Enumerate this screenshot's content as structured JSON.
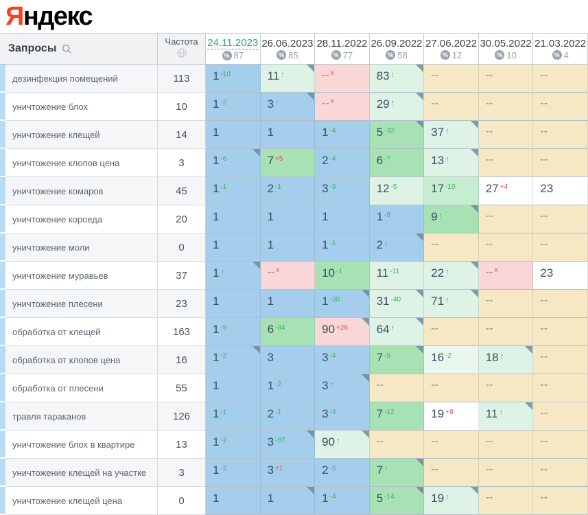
{
  "logo": {
    "text_red": "Я",
    "text_black": "ндекс"
  },
  "header": {
    "queries_label": "Запросы",
    "frequency_label": "Частота"
  },
  "columns": [
    {
      "date": "24.11.2023",
      "share": "87",
      "active": true
    },
    {
      "date": "26.06.2023",
      "share": "85",
      "active": false
    },
    {
      "date": "28.11.2022",
      "share": "77",
      "active": false
    },
    {
      "date": "26.09.2022",
      "share": "58",
      "active": false
    },
    {
      "date": "27.06.2022",
      "share": "12",
      "active": false
    },
    {
      "date": "30.05.2022",
      "share": "10",
      "active": false
    },
    {
      "date": "21.03.2022",
      "share": "4",
      "active": false
    }
  ],
  "rows": [
    {
      "query": "дезинфекция помещений",
      "frequency": "113",
      "cells": [
        {
          "v": "1",
          "sup": "-10",
          "sc": "up",
          "bg": "blue"
        },
        {
          "v": "11",
          "arrow": true,
          "bg": "mint",
          "mk": true
        },
        {
          "v": "--",
          "sup": "x",
          "sc": "down",
          "bg": "pink"
        },
        {
          "v": "83",
          "arrow": true,
          "bg": "mint",
          "mk": true
        },
        {
          "v": "--",
          "bg": "beige"
        },
        {
          "v": "--",
          "bg": "beige"
        },
        {
          "v": "--",
          "bg": "beige"
        }
      ]
    },
    {
      "query": "уничтожение блох",
      "frequency": "10",
      "cells": [
        {
          "v": "1",
          "sup": "-2",
          "sc": "up",
          "bg": "blue"
        },
        {
          "v": "3",
          "arrow": true,
          "bg": "blue",
          "mk": true
        },
        {
          "v": "--",
          "sup": "x",
          "sc": "down",
          "bg": "pink"
        },
        {
          "v": "29",
          "arrow": true,
          "bg": "mint",
          "mk": true
        },
        {
          "v": "--",
          "bg": "beige"
        },
        {
          "v": "--",
          "bg": "beige"
        },
        {
          "v": "--",
          "bg": "beige"
        }
      ]
    },
    {
      "query": "уничтожение клещей",
      "frequency": "14",
      "cells": [
        {
          "v": "1",
          "bg": "blue"
        },
        {
          "v": "1",
          "bg": "blue"
        },
        {
          "v": "1",
          "sup": "-4",
          "sc": "up",
          "bg": "blue"
        },
        {
          "v": "5",
          "sup": "-32",
          "sc": "up",
          "bg": "green",
          "mk": true
        },
        {
          "v": "37",
          "arrow": true,
          "bg": "mint",
          "mk": true
        },
        {
          "v": "--",
          "bg": "beige"
        },
        {
          "v": "--",
          "bg": "beige"
        }
      ]
    },
    {
      "query": "уничтожение клопов цена",
      "frequency": "3",
      "cells": [
        {
          "v": "1",
          "sup": "-6",
          "sc": "up",
          "bg": "blue",
          "mk": true
        },
        {
          "v": "7",
          "sup": "+5",
          "sc": "down",
          "bg": "green"
        },
        {
          "v": "2",
          "sup": "-4",
          "sc": "up",
          "bg": "blue"
        },
        {
          "v": "6",
          "sup": "-7",
          "sc": "up",
          "bg": "green"
        },
        {
          "v": "13",
          "arrow": true,
          "bg": "mint",
          "mk": true
        },
        {
          "v": "--",
          "bg": "beige"
        },
        {
          "v": "--",
          "bg": "beige"
        }
      ]
    },
    {
      "query": "уничтожение комаров",
      "frequency": "45",
      "cells": [
        {
          "v": "1",
          "sup": "-1",
          "sc": "up",
          "bg": "blue"
        },
        {
          "v": "2",
          "sup": "-1",
          "sc": "up",
          "bg": "blue"
        },
        {
          "v": "3",
          "sup": "-9",
          "sc": "up",
          "bg": "blue"
        },
        {
          "v": "12",
          "sup": "-5",
          "sc": "up",
          "bg": "mint"
        },
        {
          "v": "17",
          "sup": "-10",
          "sc": "up",
          "bg": "green2"
        },
        {
          "v": "27",
          "sup": "+4",
          "sc": "down",
          "bg": "white"
        },
        {
          "v": "23",
          "bg": "white"
        }
      ]
    },
    {
      "query": "уничтожение короеда",
      "frequency": "20",
      "cells": [
        {
          "v": "1",
          "bg": "blue"
        },
        {
          "v": "1",
          "bg": "blue"
        },
        {
          "v": "1",
          "bg": "blue"
        },
        {
          "v": "1",
          "sup": "-8",
          "sc": "up",
          "bg": "blue"
        },
        {
          "v": "9",
          "arrow": true,
          "bg": "green",
          "mk": true
        },
        {
          "v": "--",
          "bg": "beige"
        },
        {
          "v": "--",
          "bg": "beige"
        }
      ]
    },
    {
      "query": "уничтожение моли",
      "frequency": "0",
      "cells": [
        {
          "v": "1",
          "bg": "blue"
        },
        {
          "v": "1",
          "bg": "blue"
        },
        {
          "v": "1",
          "sup": "-1",
          "sc": "up",
          "bg": "blue"
        },
        {
          "v": "2",
          "arrow": true,
          "bg": "blue",
          "mk": true
        },
        {
          "v": "--",
          "bg": "beige"
        },
        {
          "v": "--",
          "bg": "beige"
        },
        {
          "v": "--",
          "bg": "beige"
        }
      ]
    },
    {
      "query": "уничтожение муравьев",
      "frequency": "37",
      "cells": [
        {
          "v": "1",
          "arrow": true,
          "bg": "blue",
          "mk": true
        },
        {
          "v": "--",
          "sup": "x",
          "sc": "down",
          "bg": "pink"
        },
        {
          "v": "10",
          "sup": "-1",
          "sc": "up",
          "bg": "green"
        },
        {
          "v": "11",
          "sup": "-11",
          "sc": "up",
          "bg": "mint"
        },
        {
          "v": "22",
          "arrow": true,
          "bg": "mint",
          "mk": true
        },
        {
          "v": "--",
          "sup": "x",
          "sc": "down",
          "bg": "pink"
        },
        {
          "v": "23",
          "bg": "white"
        }
      ]
    },
    {
      "query": "уничтожение плесени",
      "frequency": "23",
      "cells": [
        {
          "v": "1",
          "bg": "blue"
        },
        {
          "v": "1",
          "bg": "blue"
        },
        {
          "v": "1",
          "sup": "-30",
          "sc": "up",
          "bg": "blue",
          "mk": true
        },
        {
          "v": "31",
          "sup": "-40",
          "sc": "up",
          "bg": "mint",
          "mk": true
        },
        {
          "v": "71",
          "arrow": true,
          "bg": "mint",
          "mk": true
        },
        {
          "v": "--",
          "bg": "beige"
        },
        {
          "v": "--",
          "bg": "beige"
        }
      ]
    },
    {
      "query": "обработка от клещей",
      "frequency": "163",
      "cells": [
        {
          "v": "1",
          "sup": "-5",
          "sc": "up",
          "bg": "blue"
        },
        {
          "v": "6",
          "sup": "-84",
          "sc": "up",
          "bg": "green"
        },
        {
          "v": "90",
          "sup": "+26",
          "sc": "down",
          "bg": "pink",
          "mk": true
        },
        {
          "v": "64",
          "arrow": true,
          "bg": "mint",
          "mk": true
        },
        {
          "v": "--",
          "bg": "beige"
        },
        {
          "v": "--",
          "bg": "beige"
        },
        {
          "v": "--",
          "bg": "beige"
        }
      ]
    },
    {
      "query": "обработка от клопов цена",
      "frequency": "16",
      "cells": [
        {
          "v": "1",
          "sup": "-2",
          "sc": "up",
          "bg": "blue",
          "mk": true
        },
        {
          "v": "3",
          "bg": "blue"
        },
        {
          "v": "3",
          "sup": "-4",
          "sc": "up",
          "bg": "blue"
        },
        {
          "v": "7",
          "sup": "-9",
          "sc": "up",
          "bg": "green",
          "mk": true
        },
        {
          "v": "16",
          "sup": "-2",
          "sc": "up",
          "bg": "green3"
        },
        {
          "v": "18",
          "arrow": true,
          "bg": "mint",
          "mk": true
        },
        {
          "v": "--",
          "bg": "beige"
        }
      ]
    },
    {
      "query": "обработка от плесени",
      "frequency": "55",
      "cells": [
        {
          "v": "1",
          "bg": "blue"
        },
        {
          "v": "1",
          "sup": "-2",
          "sc": "up",
          "bg": "blue"
        },
        {
          "v": "3",
          "arrow": true,
          "bg": "blue",
          "mk": true
        },
        {
          "v": "--",
          "bg": "beige"
        },
        {
          "v": "--",
          "bg": "beige"
        },
        {
          "v": "--",
          "bg": "beige"
        },
        {
          "v": "--",
          "bg": "beige"
        }
      ]
    },
    {
      "query": "травля тараканов",
      "frequency": "126",
      "cells": [
        {
          "v": "1",
          "sup": "-1",
          "sc": "up",
          "bg": "blue"
        },
        {
          "v": "2",
          "sup": "-1",
          "sc": "up",
          "bg": "blue"
        },
        {
          "v": "3",
          "sup": "-4",
          "sc": "up",
          "bg": "blue"
        },
        {
          "v": "7",
          "sup": "-12",
          "sc": "up",
          "bg": "green"
        },
        {
          "v": "19",
          "sup": "+8",
          "sc": "down",
          "bg": "white"
        },
        {
          "v": "11",
          "arrow": true,
          "bg": "mint",
          "mk": true
        },
        {
          "v": "--",
          "bg": "beige"
        }
      ]
    },
    {
      "query": "уничтожение блох в квартире",
      "frequency": "13",
      "cells": [
        {
          "v": "1",
          "sup": "-2",
          "sc": "up",
          "bg": "blue"
        },
        {
          "v": "3",
          "sup": "-87",
          "sc": "up",
          "bg": "blue",
          "mk": true
        },
        {
          "v": "90",
          "arrow": true,
          "bg": "mint",
          "mk": true
        },
        {
          "v": "--",
          "bg": "beige"
        },
        {
          "v": "--",
          "bg": "beige"
        },
        {
          "v": "--",
          "bg": "beige"
        },
        {
          "v": "--",
          "bg": "beige"
        }
      ]
    },
    {
      "query": "уничтожение клещей на участке",
      "frequency": "3",
      "cells": [
        {
          "v": "1",
          "sup": "-2",
          "sc": "up",
          "bg": "blue"
        },
        {
          "v": "3",
          "sup": "+1",
          "sc": "down",
          "bg": "blue"
        },
        {
          "v": "2",
          "sup": "-5",
          "sc": "up",
          "bg": "blue"
        },
        {
          "v": "7",
          "arrow": true,
          "bg": "green",
          "mk": true
        },
        {
          "v": "--",
          "bg": "beige"
        },
        {
          "v": "--",
          "bg": "beige"
        },
        {
          "v": "--",
          "bg": "beige"
        }
      ]
    },
    {
      "query": "уничтожение клещей цена",
      "frequency": "0",
      "cells": [
        {
          "v": "1",
          "bg": "blue"
        },
        {
          "v": "1",
          "bg": "blue",
          "mk": true
        },
        {
          "v": "1",
          "sup": "-4",
          "sc": "up",
          "bg": "blue"
        },
        {
          "v": "5",
          "sup": "-14",
          "sc": "up",
          "bg": "green",
          "mk": true
        },
        {
          "v": "19",
          "arrow": true,
          "bg": "mint",
          "mk": true
        },
        {
          "v": "--",
          "bg": "beige"
        },
        {
          "v": "--",
          "bg": "beige"
        }
      ]
    }
  ],
  "colors": {
    "logo_accent": "#fc3f1d",
    "active_date": "#2bb05a",
    "change_up": "#3cb566",
    "change_down": "#e2554f",
    "cell_blue": "#a5cdec",
    "cell_mint": "#def3e5",
    "cell_green": "#a8e2b4",
    "cell_pink": "#f9d7d6",
    "cell_beige": "#f6e7c5",
    "row_accent": "#b9dcf4"
  }
}
